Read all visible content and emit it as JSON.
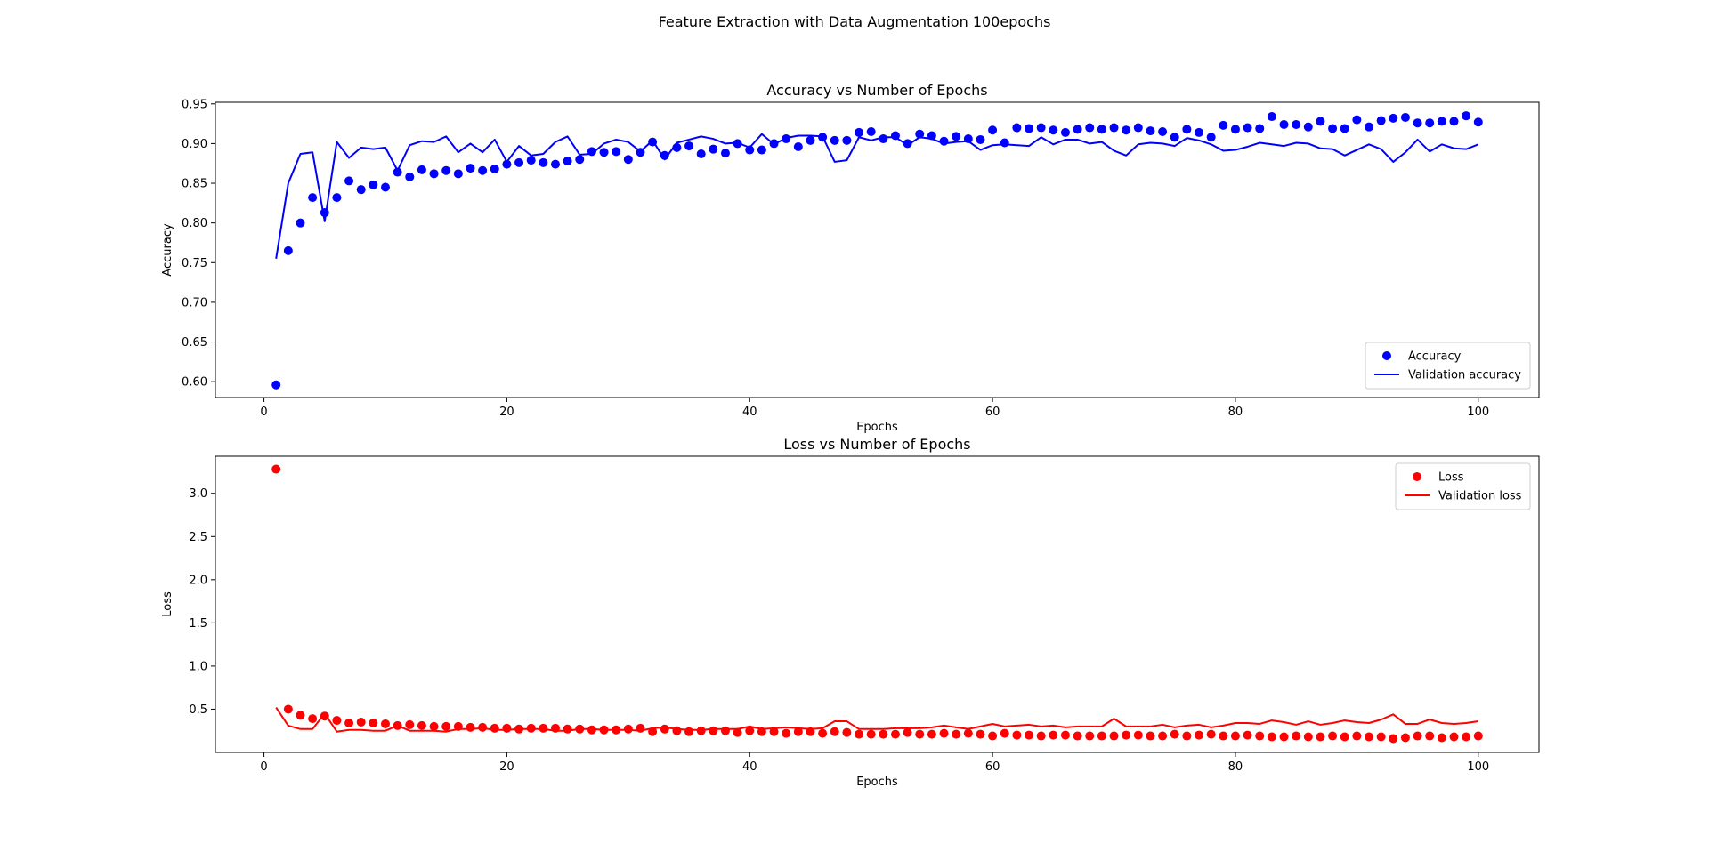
{
  "figure": {
    "suptitle": "Feature Extraction with Data Augmentation 100epochs"
  },
  "chart_data": [
    {
      "type": "scatter",
      "title": "Accuracy vs Number of Epochs",
      "xlabel": "Epochs",
      "ylabel": "Accuracy",
      "xlim": [
        -4,
        105
      ],
      "ylim": [
        0.58,
        0.952
      ],
      "xticks": [
        0,
        20,
        40,
        60,
        80,
        100
      ],
      "yticks": [
        0.6,
        0.65,
        0.7,
        0.75,
        0.8,
        0.85,
        0.9,
        0.95
      ],
      "grid": false,
      "legend_position": "lower-right",
      "series": [
        {
          "name": "Accuracy",
          "kind": "points",
          "color": "#0000ff",
          "x": [
            1,
            2,
            3,
            4,
            5,
            6,
            7,
            8,
            9,
            10,
            11,
            12,
            13,
            14,
            15,
            16,
            17,
            18,
            19,
            20,
            21,
            22,
            23,
            24,
            25,
            26,
            27,
            28,
            29,
            30,
            31,
            32,
            33,
            34,
            35,
            36,
            37,
            38,
            39,
            40,
            41,
            42,
            43,
            44,
            45,
            46,
            47,
            48,
            49,
            50,
            51,
            52,
            53,
            54,
            55,
            56,
            57,
            58,
            59,
            60,
            61,
            62,
            63,
            64,
            65,
            66,
            67,
            68,
            69,
            70,
            71,
            72,
            73,
            74,
            75,
            76,
            77,
            78,
            79,
            80,
            81,
            82,
            83,
            84,
            85,
            86,
            87,
            88,
            89,
            90,
            91,
            92,
            93,
            94,
            95,
            96,
            97,
            98,
            99,
            100
          ],
          "y": [
            0.596,
            0.765,
            0.8,
            0.832,
            0.813,
            0.832,
            0.853,
            0.842,
            0.848,
            0.845,
            0.864,
            0.858,
            0.867,
            0.862,
            0.866,
            0.862,
            0.869,
            0.866,
            0.868,
            0.874,
            0.876,
            0.879,
            0.876,
            0.874,
            0.878,
            0.88,
            0.89,
            0.889,
            0.89,
            0.88,
            0.889,
            0.902,
            0.885,
            0.895,
            0.897,
            0.887,
            0.893,
            0.888,
            0.9,
            0.892,
            0.892,
            0.9,
            0.906,
            0.896,
            0.904,
            0.908,
            0.904,
            0.904,
            0.914,
            0.915,
            0.906,
            0.91,
            0.9,
            0.912,
            0.91,
            0.903,
            0.909,
            0.906,
            0.905,
            0.917,
            0.901,
            0.92,
            0.919,
            0.92,
            0.917,
            0.914,
            0.918,
            0.92,
            0.918,
            0.92,
            0.917,
            0.92,
            0.916,
            0.915,
            0.908,
            0.918,
            0.914,
            0.908,
            0.923,
            0.918,
            0.92,
            0.919,
            0.934,
            0.924,
            0.924,
            0.921,
            0.928,
            0.919,
            0.919,
            0.93,
            0.921,
            0.929,
            0.932,
            0.933,
            0.926,
            0.926,
            0.928,
            0.928,
            0.935,
            0.927
          ]
        },
        {
          "name": "Validation accuracy",
          "kind": "line",
          "color": "#0000ff",
          "x": [
            1,
            2,
            3,
            4,
            5,
            6,
            7,
            8,
            9,
            10,
            11,
            12,
            13,
            14,
            15,
            16,
            17,
            18,
            19,
            20,
            21,
            22,
            23,
            24,
            25,
            26,
            27,
            28,
            29,
            30,
            31,
            32,
            33,
            34,
            35,
            36,
            37,
            38,
            39,
            40,
            41,
            42,
            43,
            44,
            45,
            46,
            47,
            48,
            49,
            50,
            51,
            52,
            53,
            54,
            55,
            56,
            57,
            58,
            59,
            60,
            61,
            62,
            63,
            64,
            65,
            66,
            67,
            68,
            69,
            70,
            71,
            72,
            73,
            74,
            75,
            76,
            77,
            78,
            79,
            80,
            81,
            82,
            83,
            84,
            85,
            86,
            87,
            88,
            89,
            90,
            91,
            92,
            93,
            94,
            95,
            96,
            97,
            98,
            99,
            100
          ],
          "y": [
            0.755,
            0.85,
            0.887,
            0.889,
            0.802,
            0.902,
            0.882,
            0.895,
            0.893,
            0.895,
            0.866,
            0.898,
            0.903,
            0.902,
            0.909,
            0.889,
            0.9,
            0.889,
            0.905,
            0.877,
            0.897,
            0.885,
            0.887,
            0.902,
            0.909,
            0.886,
            0.887,
            0.9,
            0.905,
            0.902,
            0.89,
            0.904,
            0.88,
            0.901,
            0.905,
            0.909,
            0.906,
            0.9,
            0.901,
            0.895,
            0.912,
            0.899,
            0.907,
            0.91,
            0.91,
            0.909,
            0.877,
            0.879,
            0.908,
            0.904,
            0.908,
            0.908,
            0.898,
            0.908,
            0.906,
            0.9,
            0.902,
            0.903,
            0.892,
            0.898,
            0.899,
            0.898,
            0.897,
            0.908,
            0.899,
            0.905,
            0.905,
            0.9,
            0.902,
            0.891,
            0.885,
            0.899,
            0.901,
            0.9,
            0.897,
            0.907,
            0.904,
            0.899,
            0.891,
            0.892,
            0.896,
            0.901,
            0.899,
            0.897,
            0.901,
            0.9,
            0.894,
            0.893,
            0.885,
            0.892,
            0.899,
            0.893,
            0.877,
            0.889,
            0.905,
            0.89,
            0.899,
            0.894,
            0.893,
            0.899
          ]
        }
      ]
    },
    {
      "type": "scatter",
      "title": "Loss vs Number of Epochs",
      "xlabel": "Epochs",
      "ylabel": "Loss",
      "xlim": [
        -4,
        105
      ],
      "ylim": [
        0.0,
        3.43
      ],
      "xticks": [
        0,
        20,
        40,
        60,
        80,
        100
      ],
      "yticks": [
        0.5,
        1.0,
        1.5,
        2.0,
        2.5,
        3.0
      ],
      "grid": false,
      "legend_position": "upper-right",
      "series": [
        {
          "name": "Loss",
          "kind": "points",
          "color": "#ff0000",
          "x": [
            1,
            2,
            3,
            4,
            5,
            6,
            7,
            8,
            9,
            10,
            11,
            12,
            13,
            14,
            15,
            16,
            17,
            18,
            19,
            20,
            21,
            22,
            23,
            24,
            25,
            26,
            27,
            28,
            29,
            30,
            31,
            32,
            33,
            34,
            35,
            36,
            37,
            38,
            39,
            40,
            41,
            42,
            43,
            44,
            45,
            46,
            47,
            48,
            49,
            50,
            51,
            52,
            53,
            54,
            55,
            56,
            57,
            58,
            59,
            60,
            61,
            62,
            63,
            64,
            65,
            66,
            67,
            68,
            69,
            70,
            71,
            72,
            73,
            74,
            75,
            76,
            77,
            78,
            79,
            80,
            81,
            82,
            83,
            84,
            85,
            86,
            87,
            88,
            89,
            90,
            91,
            92,
            93,
            94,
            95,
            96,
            97,
            98,
            99,
            100
          ],
          "y": [
            3.28,
            0.5,
            0.43,
            0.39,
            0.42,
            0.37,
            0.34,
            0.35,
            0.34,
            0.33,
            0.31,
            0.32,
            0.31,
            0.3,
            0.3,
            0.3,
            0.29,
            0.29,
            0.28,
            0.28,
            0.27,
            0.28,
            0.28,
            0.28,
            0.27,
            0.27,
            0.26,
            0.26,
            0.26,
            0.27,
            0.28,
            0.24,
            0.27,
            0.25,
            0.24,
            0.25,
            0.25,
            0.25,
            0.23,
            0.25,
            0.24,
            0.24,
            0.22,
            0.24,
            0.24,
            0.22,
            0.24,
            0.23,
            0.21,
            0.21,
            0.21,
            0.21,
            0.23,
            0.21,
            0.21,
            0.22,
            0.21,
            0.22,
            0.21,
            0.19,
            0.22,
            0.2,
            0.2,
            0.19,
            0.2,
            0.2,
            0.19,
            0.19,
            0.19,
            0.19,
            0.2,
            0.2,
            0.19,
            0.19,
            0.21,
            0.19,
            0.2,
            0.21,
            0.19,
            0.19,
            0.2,
            0.19,
            0.18,
            0.18,
            0.19,
            0.18,
            0.18,
            0.19,
            0.18,
            0.19,
            0.18,
            0.18,
            0.16,
            0.17,
            0.19,
            0.19,
            0.17,
            0.18,
            0.18,
            0.19
          ]
        },
        {
          "name": "Validation loss",
          "kind": "line",
          "color": "#ff0000",
          "x": [
            1,
            2,
            3,
            4,
            5,
            6,
            7,
            8,
            9,
            10,
            11,
            12,
            13,
            14,
            15,
            16,
            17,
            18,
            19,
            20,
            21,
            22,
            23,
            24,
            25,
            26,
            27,
            28,
            29,
            30,
            31,
            32,
            33,
            34,
            35,
            36,
            37,
            38,
            39,
            40,
            41,
            42,
            43,
            44,
            45,
            46,
            47,
            48,
            49,
            50,
            51,
            52,
            53,
            54,
            55,
            56,
            57,
            58,
            59,
            60,
            61,
            62,
            63,
            64,
            65,
            66,
            67,
            68,
            69,
            70,
            71,
            72,
            73,
            74,
            75,
            76,
            77,
            78,
            79,
            80,
            81,
            82,
            83,
            84,
            85,
            86,
            87,
            88,
            89,
            90,
            91,
            92,
            93,
            94,
            95,
            96,
            97,
            98,
            99,
            100
          ],
          "y": [
            0.52,
            0.31,
            0.27,
            0.27,
            0.45,
            0.24,
            0.26,
            0.26,
            0.25,
            0.25,
            0.31,
            0.25,
            0.25,
            0.25,
            0.24,
            0.27,
            0.27,
            0.28,
            0.26,
            0.26,
            0.27,
            0.27,
            0.27,
            0.25,
            0.25,
            0.27,
            0.27,
            0.26,
            0.26,
            0.26,
            0.25,
            0.28,
            0.29,
            0.27,
            0.26,
            0.26,
            0.27,
            0.27,
            0.27,
            0.3,
            0.27,
            0.28,
            0.29,
            0.28,
            0.27,
            0.28,
            0.36,
            0.36,
            0.27,
            0.27,
            0.27,
            0.28,
            0.28,
            0.28,
            0.29,
            0.31,
            0.29,
            0.27,
            0.3,
            0.33,
            0.3,
            0.31,
            0.32,
            0.3,
            0.31,
            0.29,
            0.3,
            0.3,
            0.3,
            0.39,
            0.3,
            0.3,
            0.3,
            0.32,
            0.29,
            0.31,
            0.32,
            0.29,
            0.31,
            0.34,
            0.34,
            0.33,
            0.37,
            0.35,
            0.32,
            0.36,
            0.32,
            0.34,
            0.37,
            0.35,
            0.34,
            0.38,
            0.44,
            0.33,
            0.33,
            0.38,
            0.34,
            0.33,
            0.34,
            0.36
          ]
        }
      ]
    }
  ]
}
